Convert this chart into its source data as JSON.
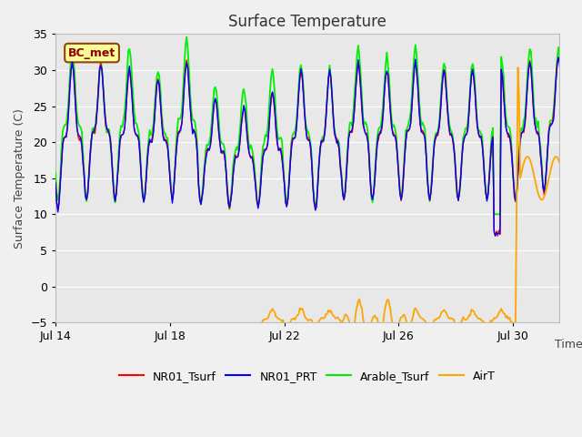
{
  "title": "Surface Temperature",
  "ylabel": "Surface Temperature (C)",
  "xlabel": "Time",
  "ylim": [
    -5,
    35
  ],
  "yticks": [
    -5,
    0,
    5,
    10,
    15,
    20,
    25,
    30,
    35
  ],
  "fig_bg_color": "#f0f0f0",
  "plot_bg_color": "#e8e8e8",
  "grid_color": "#ffffff",
  "series": {
    "NR01_Tsurf": {
      "color": "#ff0000",
      "lw": 1.0,
      "zorder": 4
    },
    "NR01_PRT": {
      "color": "#0000ff",
      "lw": 1.0,
      "zorder": 5
    },
    "Arable_Tsurf": {
      "color": "#00ee00",
      "lw": 1.3,
      "zorder": 3
    },
    "AirT": {
      "color": "#ffa500",
      "lw": 1.3,
      "zorder": 6
    }
  },
  "annotation": {
    "text": "BC_met",
    "fontsize": 9,
    "color": "#8b0000",
    "bg": "#ffff99",
    "border_color": "#8b4513"
  },
  "xtick_labels": [
    "Jul 14",
    "Jul 18",
    "Jul 22",
    "Jul 26",
    "Jul 30"
  ],
  "xtick_days": [
    0,
    4,
    8,
    12,
    16
  ],
  "xlim": [
    0,
    17.6
  ]
}
